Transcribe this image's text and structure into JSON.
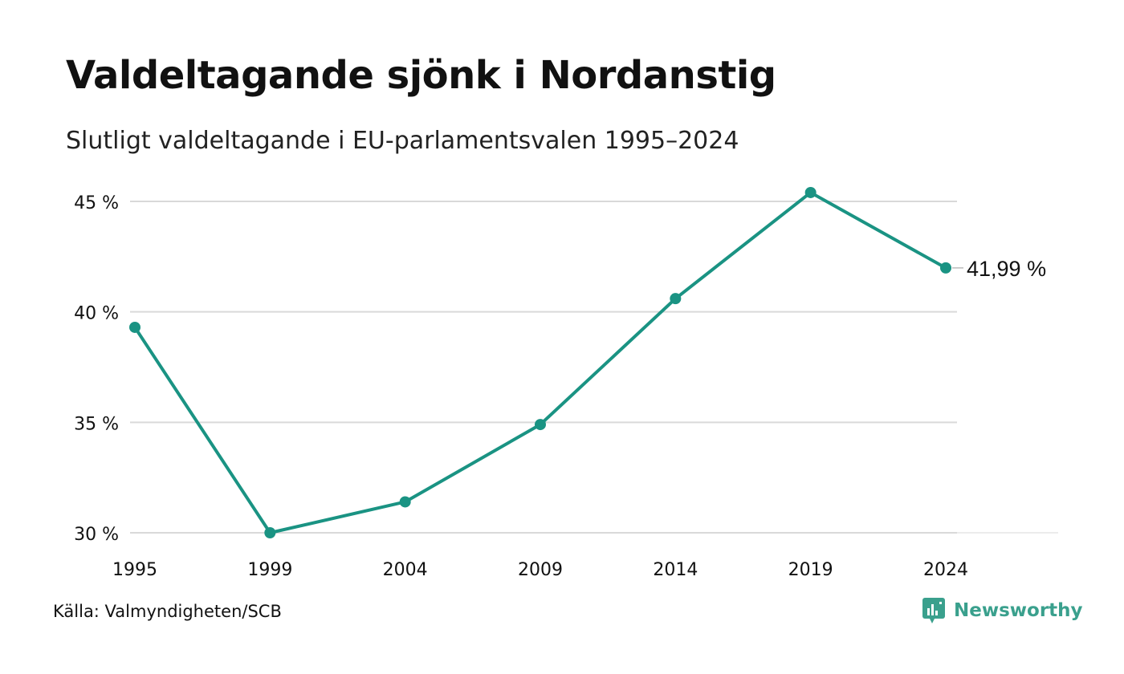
{
  "header": {
    "title": "Valdeltagande sjönk i Nordanstig",
    "subtitle": "Slutligt valdeltagande i EU-parlamentsvalen 1995–2024"
  },
  "footer": {
    "source": "Källa: Valmyndigheten/SCB",
    "brand": "Newsworthy"
  },
  "colors": {
    "line": "#1a9383",
    "grid": "#d9d9d9",
    "brand": "#3aa08d"
  },
  "chart_data": {
    "type": "line",
    "categories": [
      "1995",
      "1999",
      "2004",
      "2009",
      "2014",
      "2019",
      "2024"
    ],
    "series": [
      {
        "values": [
          39.3,
          30.0,
          31.4,
          34.9,
          40.6,
          45.4,
          41.99
        ]
      }
    ],
    "yticks": [
      "30 %",
      "35 %",
      "40 %",
      "45 %"
    ],
    "ytick_values": [
      30,
      35,
      40,
      45
    ],
    "ylim": [
      30,
      45
    ],
    "last_value_label": "41,99 %",
    "grid": true,
    "legend": "none"
  }
}
